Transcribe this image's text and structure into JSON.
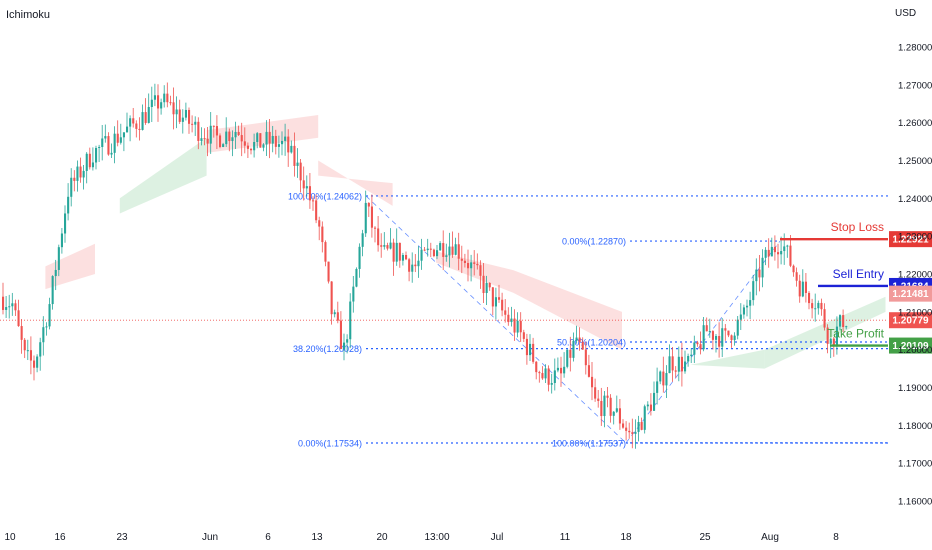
{
  "indicator_label": "Ichimoku",
  "currency_label": "USD",
  "colors": {
    "up": "#26a69a",
    "down": "#ef5350",
    "cloud_bull": "#d7eedd",
    "cloud_bear": "#fbdada",
    "fib": "#2962ff",
    "stop": "#e53935",
    "entry": "#1c22d6",
    "tp": "#43a047",
    "current": "#ef5350",
    "prev_close": "#f19a9a"
  },
  "chart_data": {
    "type": "candlestick",
    "yaxis": {
      "range": [
        1.155,
        1.285
      ],
      "ticks": [
        "1.28000",
        "1.27000",
        "1.26000",
        "1.25000",
        "1.24000",
        "1.23000",
        "1.22000",
        "1.21000",
        "1.20000",
        "1.19000",
        "1.18000",
        "1.17000",
        "1.16000"
      ]
    },
    "xaxis": {
      "labels": [
        "10",
        "16",
        "23",
        "Jun",
        "6",
        "13",
        "20",
        "13:00",
        "Jul",
        "11",
        "18",
        "25",
        "Aug",
        "8"
      ]
    },
    "trend_knots": [
      {
        "bar": 0,
        "price": 1.214
      },
      {
        "bar": 4,
        "price": 1.212
      },
      {
        "bar": 8,
        "price": 1.198
      },
      {
        "bar": 11,
        "price": 1.196
      },
      {
        "bar": 16,
        "price": 1.212
      },
      {
        "bar": 22,
        "price": 1.242
      },
      {
        "bar": 30,
        "price": 1.252
      },
      {
        "bar": 36,
        "price": 1.255
      },
      {
        "bar": 44,
        "price": 1.26
      },
      {
        "bar": 52,
        "price": 1.266
      },
      {
        "bar": 58,
        "price": 1.262
      },
      {
        "bar": 64,
        "price": 1.258
      },
      {
        "bar": 70,
        "price": 1.256
      },
      {
        "bar": 76,
        "price": 1.258
      },
      {
        "bar": 82,
        "price": 1.254
      },
      {
        "bar": 86,
        "price": 1.255
      },
      {
        "bar": 92,
        "price": 1.254
      },
      {
        "bar": 98,
        "price": 1.245
      },
      {
        "bar": 103,
        "price": 1.232
      },
      {
        "bar": 107,
        "price": 1.21
      },
      {
        "bar": 111,
        "price": 1.2
      },
      {
        "bar": 114,
        "price": 1.215
      },
      {
        "bar": 118,
        "price": 1.238
      },
      {
        "bar": 123,
        "price": 1.225
      },
      {
        "bar": 128,
        "price": 1.226
      },
      {
        "bar": 134,
        "price": 1.222
      },
      {
        "bar": 140,
        "price": 1.227
      },
      {
        "bar": 146,
        "price": 1.228
      },
      {
        "bar": 152,
        "price": 1.222
      },
      {
        "bar": 160,
        "price": 1.212
      },
      {
        "bar": 168,
        "price": 1.204
      },
      {
        "bar": 175,
        "price": 1.193
      },
      {
        "bar": 181,
        "price": 1.193
      },
      {
        "bar": 186,
        "price": 1.203
      },
      {
        "bar": 192,
        "price": 1.186
      },
      {
        "bar": 198,
        "price": 1.184
      },
      {
        "bar": 204,
        "price": 1.177
      },
      {
        "bar": 210,
        "price": 1.186
      },
      {
        "bar": 216,
        "price": 1.197
      },
      {
        "bar": 222,
        "price": 1.196
      },
      {
        "bar": 228,
        "price": 1.205
      },
      {
        "bar": 234,
        "price": 1.203
      },
      {
        "bar": 240,
        "price": 1.209
      },
      {
        "bar": 246,
        "price": 1.223
      },
      {
        "bar": 252,
        "price": 1.229
      },
      {
        "bar": 258,
        "price": 1.217
      },
      {
        "bar": 264,
        "price": 1.212
      },
      {
        "bar": 268,
        "price": 1.202
      },
      {
        "bar": 272,
        "price": 1.208
      }
    ],
    "bar_count": 273,
    "ichimoku_cloud": [
      {
        "start": 14,
        "end": 30,
        "a": [
          1.222,
          1.228
        ],
        "b": [
          1.216,
          1.22
        ],
        "trend": "bear"
      },
      {
        "start": 38,
        "end": 66,
        "a": [
          1.24,
          1.256
        ],
        "b": [
          1.236,
          1.246
        ],
        "trend": "bull"
      },
      {
        "start": 66,
        "end": 102,
        "a": [
          1.252,
          1.256
        ],
        "b": [
          1.258,
          1.262
        ],
        "trend": "bear"
      },
      {
        "start": 102,
        "end": 126,
        "a": [
          1.25,
          1.238
        ],
        "b": [
          1.246,
          1.244
        ],
        "trend": "bear"
      },
      {
        "start": 140,
        "end": 165,
        "a": [
          1.223,
          1.215
        ],
        "b": [
          1.226,
          1.221
        ],
        "trend": "bear"
      },
      {
        "start": 165,
        "end": 200,
        "a": [
          1.215,
          1.2
        ],
        "b": [
          1.221,
          1.21
        ],
        "trend": "bear"
      },
      {
        "start": 222,
        "end": 246,
        "a": [
          1.196,
          1.2
        ],
        "b": [
          1.196,
          1.195
        ],
        "trend": "bull"
      },
      {
        "start": 246,
        "end": 285,
        "a": [
          1.2,
          1.214
        ],
        "b": [
          1.195,
          1.21
        ],
        "trend": "bull"
      }
    ],
    "fib_left": {
      "levels": [
        {
          "label": "100.00%(1.24062)",
          "price": 1.24062
        },
        {
          "label": "38.20%(1.20028)",
          "price": 1.20028
        },
        {
          "label": "0.00%(1.17534)",
          "price": 1.17534
        }
      ]
    },
    "fib_right": {
      "levels": [
        {
          "label": "0.00%(1.22870)",
          "price": 1.2287
        },
        {
          "label": "50.00%(1.20204)",
          "price": 1.20204
        },
        {
          "label": "100.00%(1.17537)",
          "price": 1.17537
        }
      ]
    },
    "trade_levels": {
      "stop_loss": {
        "label": "Stop Loss",
        "price": 1.22921,
        "tag": "1.22921"
      },
      "sell_entry": {
        "label": "Sell Entry",
        "price": 1.21684,
        "tag": "1.21684"
      },
      "take_profit": {
        "label": "Take Profit",
        "price": 1.20109,
        "tag": "1.20109"
      }
    },
    "current_price": {
      "price": 1.20779,
      "tag": "1.20779"
    },
    "prev_close": {
      "price": 1.21481,
      "tag": "1.21481"
    }
  }
}
